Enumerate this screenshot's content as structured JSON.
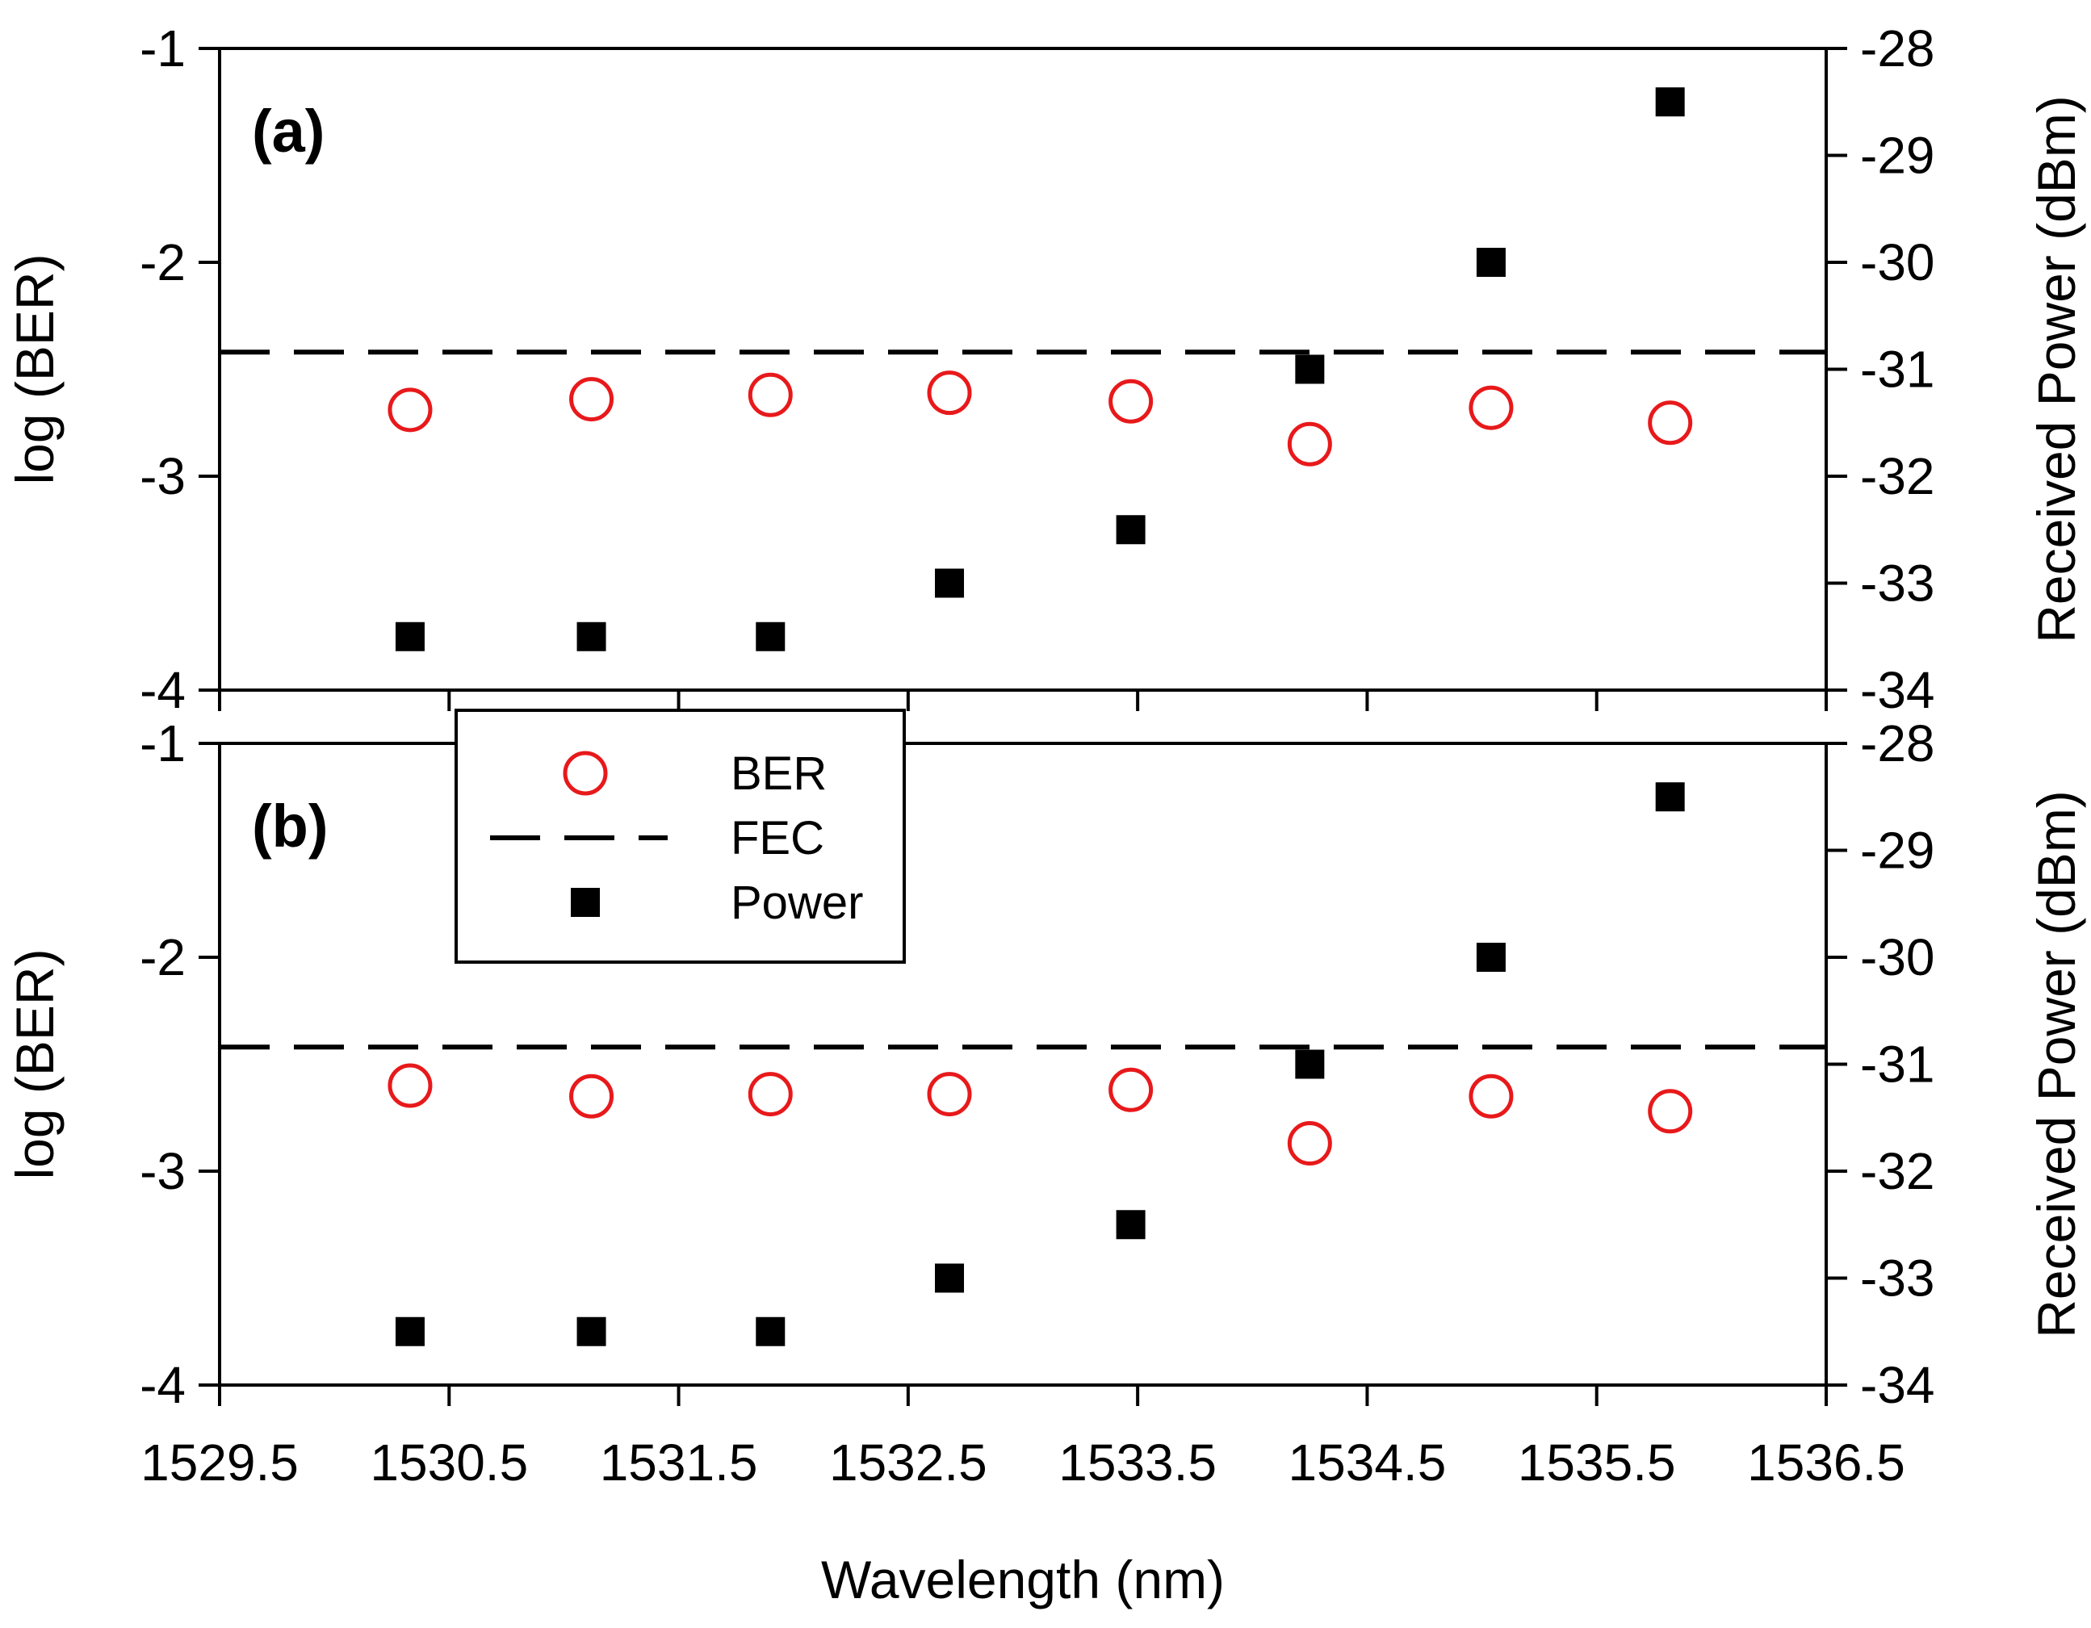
{
  "chart_data": {
    "type": "scatter",
    "xlabel": "Wavelength (nm)",
    "xlim": [
      1529.5,
      1536.5
    ],
    "xticks": [
      "1529.5",
      "1530.5",
      "1531.5",
      "1532.5",
      "1533.5",
      "1534.5",
      "1535.5",
      "1536.5"
    ],
    "legend": {
      "placement": "upper-left of panel (b)",
      "entries": [
        "BER",
        "FEC",
        "Power"
      ]
    },
    "colors": {
      "ber": "#e8191b",
      "fec": "#000000",
      "power": "#000000"
    },
    "panels": [
      {
        "label": "(a)",
        "ylabel_left": "log (BER)",
        "ylabel_right": "Received Power (dBm)",
        "ylim_left": [
          -4,
          -1
        ],
        "ylim_right": [
          -34,
          -28
        ],
        "yticks_left": [
          "-1",
          "-2",
          "-3",
          "-4"
        ],
        "yticks_right": [
          "-28",
          "-29",
          "-30",
          "-31",
          "-32",
          "-33",
          "-34"
        ],
        "fec": -2.42,
        "x": [
          1530.33,
          1531.12,
          1531.9,
          1532.68,
          1533.47,
          1534.25,
          1535.04,
          1535.82
        ],
        "ber": [
          -2.69,
          -2.64,
          -2.62,
          -2.61,
          -2.65,
          -2.85,
          -2.68,
          -2.75
        ],
        "power": [
          -33.5,
          -33.5,
          -33.5,
          -33.0,
          -32.5,
          -31.0,
          -30.0,
          -28.5
        ]
      },
      {
        "label": "(b)",
        "ylabel_left": "log (BER)",
        "ylabel_right": "Received Power (dBm)",
        "ylim_left": [
          -4,
          -1
        ],
        "ylim_right": [
          -34,
          -28
        ],
        "yticks_left": [
          "-1",
          "-2",
          "-3",
          "-4"
        ],
        "yticks_right": [
          "-28",
          "-29",
          "-30",
          "-31",
          "-32",
          "-33",
          "-34"
        ],
        "fec": -2.42,
        "x": [
          1530.33,
          1531.12,
          1531.9,
          1532.68,
          1533.47,
          1534.25,
          1535.04,
          1535.82
        ],
        "ber": [
          -2.6,
          -2.65,
          -2.64,
          -2.64,
          -2.62,
          -2.87,
          -2.65,
          -2.72
        ],
        "power": [
          -33.5,
          -33.5,
          -33.5,
          -33.0,
          -32.5,
          -31.0,
          -30.0,
          -28.5
        ]
      }
    ]
  }
}
